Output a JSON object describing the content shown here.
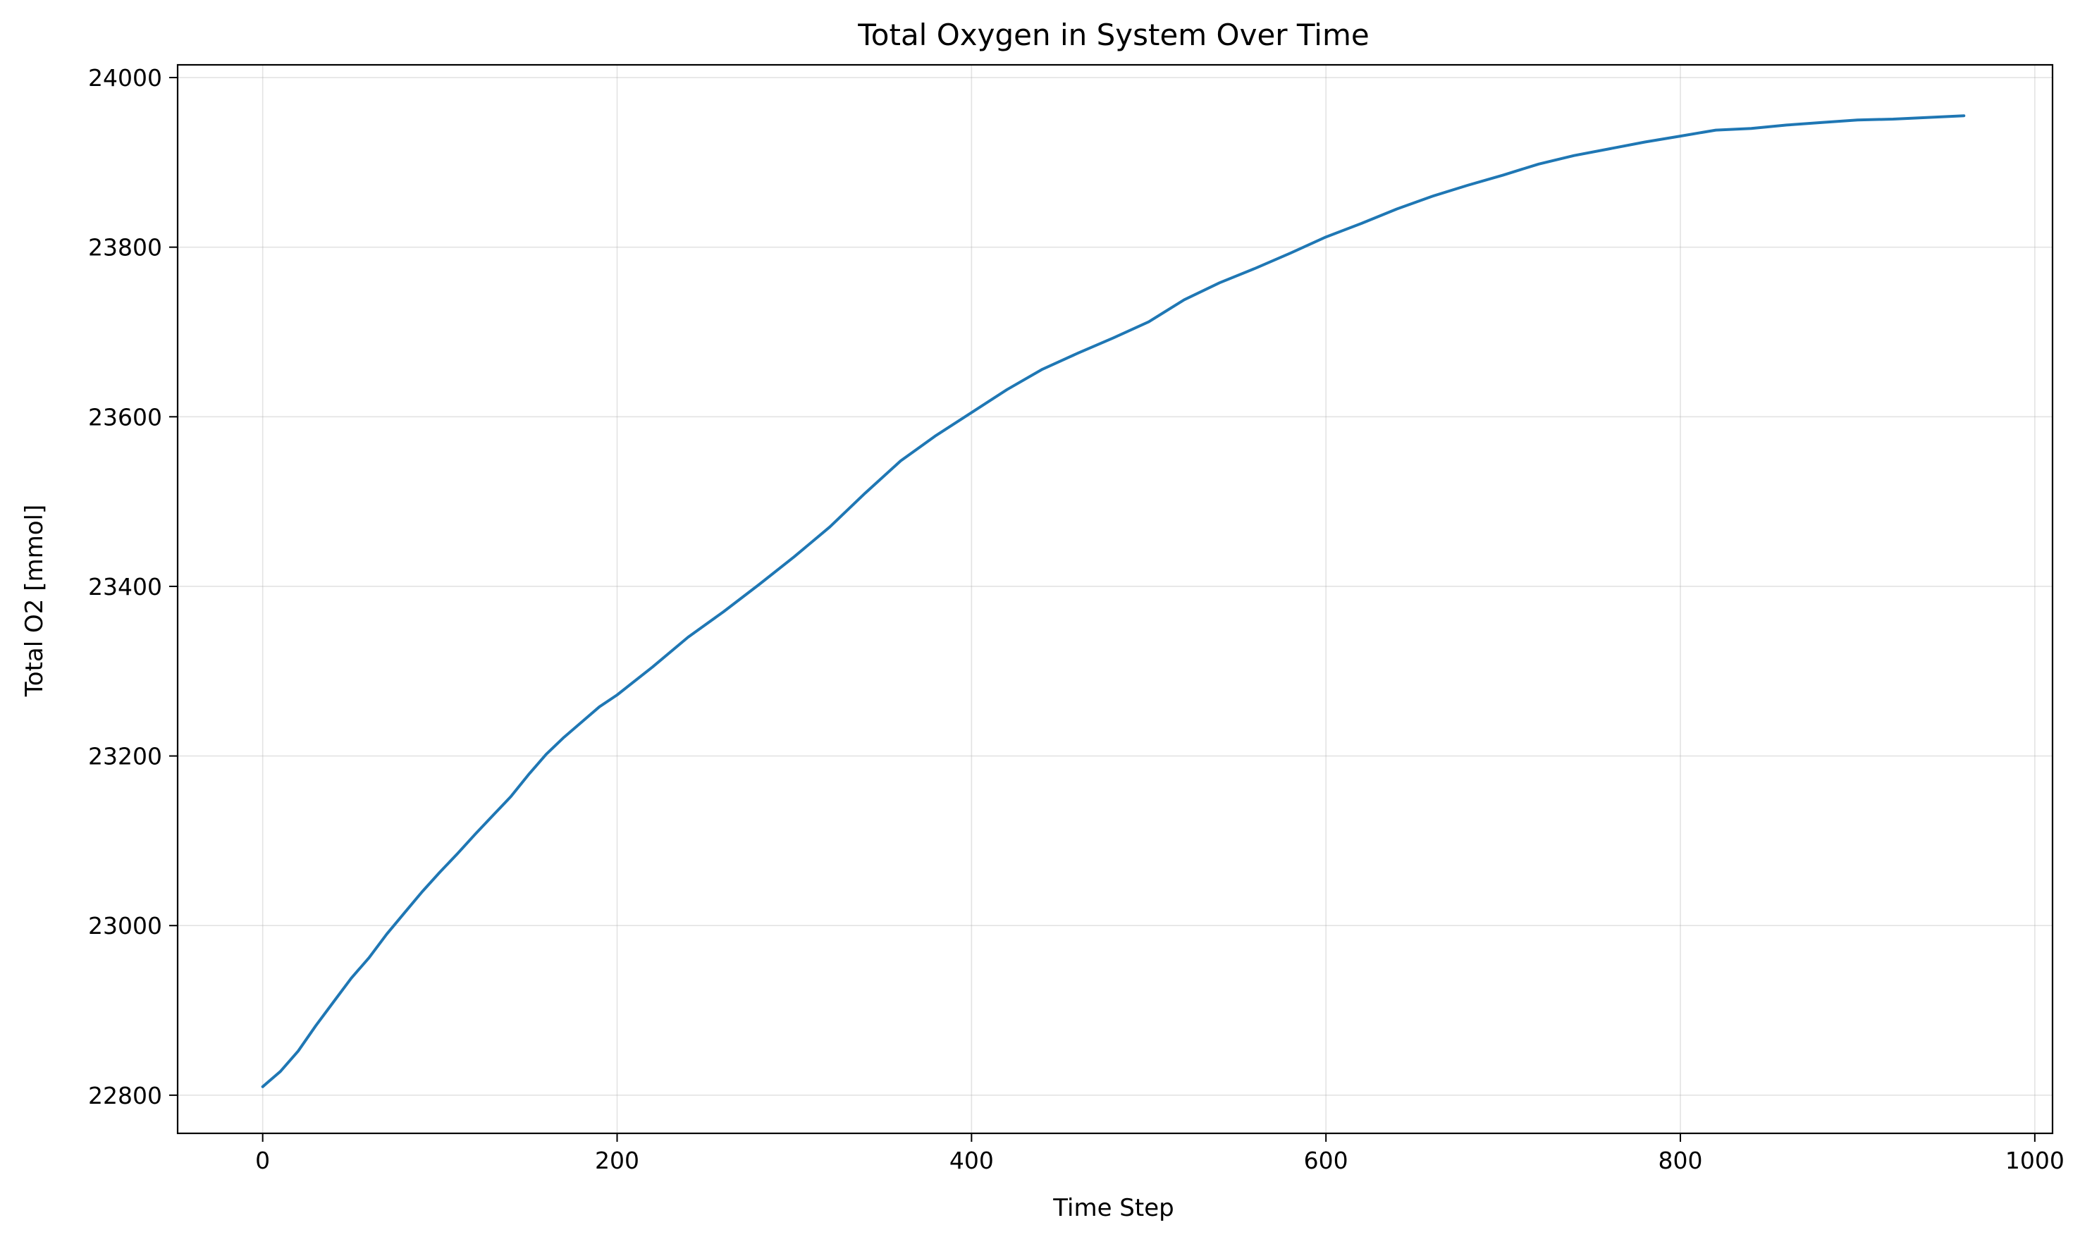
{
  "chart_data": {
    "type": "line",
    "title": "Total Oxygen in System Over Time",
    "xlabel": "Time Step",
    "ylabel": "Total O2 [mmol]",
    "xlim": [
      -48,
      1010
    ],
    "ylim": [
      22755,
      24015
    ],
    "xticks": [
      0,
      200,
      400,
      600,
      800,
      1000
    ],
    "yticks": [
      22800,
      23000,
      23200,
      23400,
      23600,
      23800,
      24000
    ],
    "xtick_labels": [
      "0",
      "200",
      "400",
      "600",
      "800",
      "1000"
    ],
    "ytick_labels": [
      "22800",
      "23000",
      "23200",
      "23400",
      "23600",
      "23800",
      "24000"
    ],
    "grid": true,
    "line_color": "#1f77b4",
    "series": [
      {
        "x": [
          0,
          10,
          20,
          30,
          40,
          50,
          60,
          70,
          80,
          90,
          100,
          110,
          120,
          130,
          140,
          150,
          160,
          170,
          180,
          190,
          200,
          220,
          240,
          260,
          280,
          300,
          320,
          340,
          360,
          380,
          400,
          420,
          440,
          460,
          480,
          500,
          520,
          540,
          560,
          580,
          600,
          620,
          640,
          660,
          680,
          700,
          720,
          740,
          760,
          780,
          800,
          820,
          840,
          860,
          880,
          900,
          920,
          940,
          960
        ],
        "y": [
          22810,
          22828,
          22852,
          22882,
          22910,
          22938,
          22962,
          22990,
          23015,
          23040,
          23063,
          23085,
          23108,
          23130,
          23152,
          23178,
          23202,
          23222,
          23240,
          23258,
          23272,
          23305,
          23340,
          23370,
          23402,
          23435,
          23470,
          23510,
          23548,
          23578,
          23605,
          23632,
          23656,
          23675,
          23693,
          23712,
          23738,
          23758,
          23775,
          23793,
          23812,
          23828,
          23845,
          23860,
          23873,
          23885,
          23898,
          23908,
          23916,
          23924,
          23931,
          23938,
          23940,
          23944,
          23947,
          23950,
          23951,
          23953,
          23955
        ]
      }
    ]
  }
}
